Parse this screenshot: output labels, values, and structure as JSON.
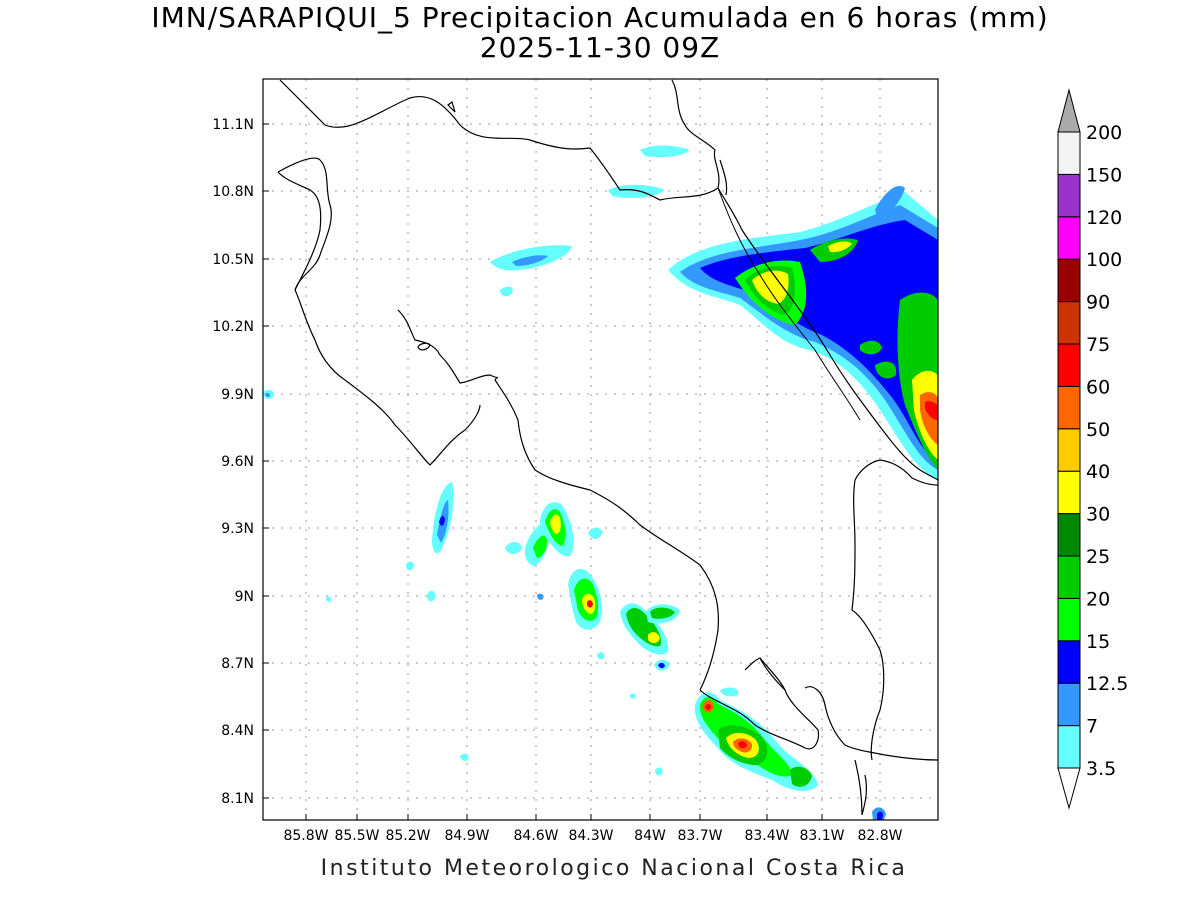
{
  "header": {
    "title": "IMN/SARAPIQUI_5 Precipitacion Acumulada en 6 horas (mm)",
    "valid_time": "2025-11-30 09Z"
  },
  "footer": {
    "credit": "Instituto Meteorologico Nacional Costa Rica"
  },
  "map": {
    "region": "Costa Rica",
    "variable": "6-hour accumulated precipitation",
    "lon_labels": [
      "85.8W",
      "85.5W",
      "85.2W",
      "84.9W",
      "84.6W",
      "84.3W",
      "84W",
      "83.7W",
      "83.4W",
      "83.1W",
      "82.8W"
    ],
    "lat_labels": [
      "11.1N",
      "10.8N",
      "10.5N",
      "10.2N",
      "9.9N",
      "9.6N",
      "9.3N",
      "9N",
      "8.7N",
      "8.4N",
      "8.1N"
    ],
    "grid": "dotted"
  },
  "colorbar": {
    "levels": [
      "3.5",
      "7",
      "12.5",
      "15",
      "20",
      "25",
      "30",
      "40",
      "50",
      "60",
      "75",
      "90",
      "100",
      "120",
      "150",
      "200"
    ],
    "colors": [
      "#66ffff",
      "#3399ff",
      "#0000ff",
      "#00ff00",
      "#00cc00",
      "#008800",
      "#ffff00",
      "#ffcc00",
      "#ff6600",
      "#ff0000",
      "#cc3300",
      "#990000",
      "#ff00ff",
      "#9933cc",
      "#f3f3f3",
      "#aaaaaa"
    ],
    "extend": "both"
  }
}
